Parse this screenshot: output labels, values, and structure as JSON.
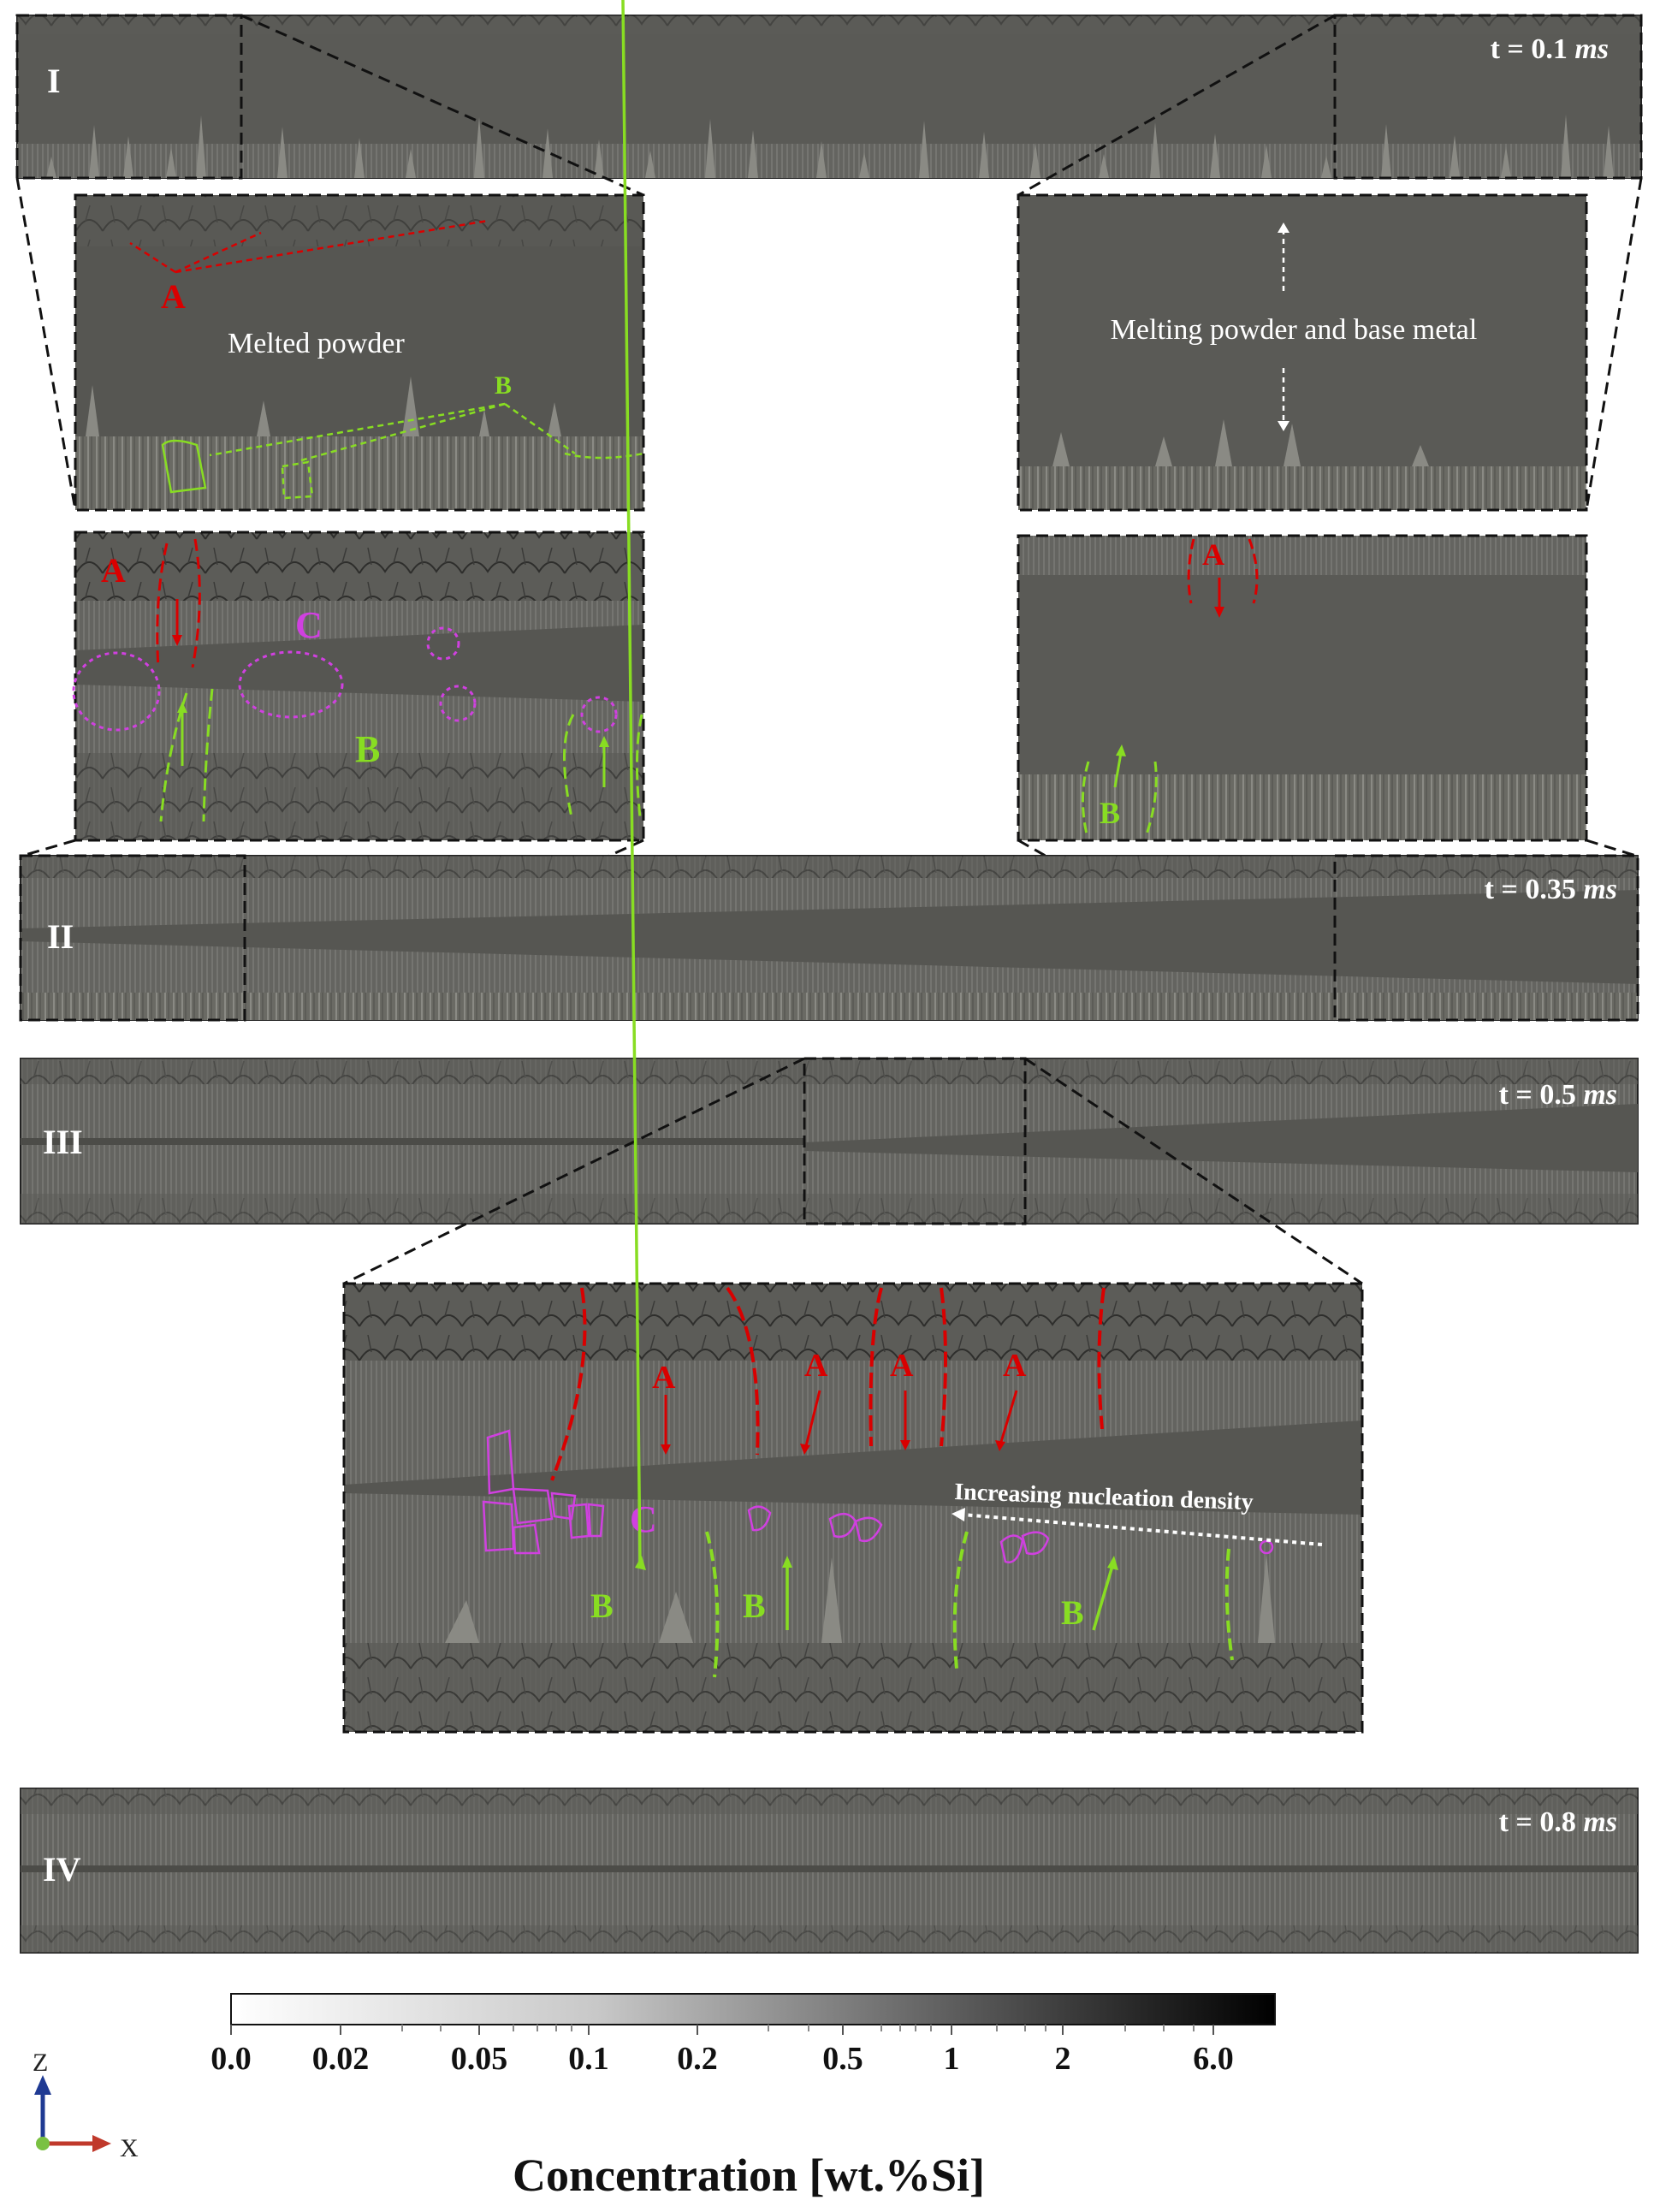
{
  "panels": {
    "I": {
      "label": "I",
      "time_prefix": "t = ",
      "time_value": "0.1",
      "time_unit": "ms"
    },
    "II": {
      "label": "II",
      "time_prefix": "t = ",
      "time_value": "0.35",
      "time_unit": "ms"
    },
    "III": {
      "label": "III",
      "time_prefix": "t = ",
      "time_value": "0.5",
      "time_unit": "ms"
    },
    "IV": {
      "label": "IV",
      "time_prefix": "t = ",
      "time_value": "0.8",
      "time_unit": "ms"
    }
  },
  "insets": {
    "I_left": {
      "text": "Melted powder",
      "labels": [
        "A",
        "B"
      ]
    },
    "I_right": {
      "text": "Melting powder and base metal"
    },
    "II_left": {
      "labels": [
        "A",
        "C",
        "B"
      ]
    },
    "II_right": {
      "labels": [
        "A",
        "B"
      ]
    },
    "III_zoom": {
      "text": "Increasing nucleation density",
      "labels": [
        "A",
        "A",
        "A",
        "A",
        "C",
        "B",
        "B",
        "B"
      ]
    }
  },
  "annotation_colors": {
    "A": "#d90000",
    "B": "#88dd22",
    "C": "#d040e0"
  },
  "colorbar": {
    "title": "Concentration [wt.%Si]",
    "ticks": [
      "0.0",
      "0.02",
      "0.05",
      "0.1",
      "0.2",
      "0.5",
      "1",
      "2",
      "6.0"
    ],
    "gradient": [
      "#ffffff",
      "#000000"
    ]
  },
  "axes_triad": {
    "z_label": "Z",
    "x_label": "X",
    "z_color": "#1f3a93",
    "x_color": "#c0392b",
    "origin_color": "#7ac142"
  }
}
